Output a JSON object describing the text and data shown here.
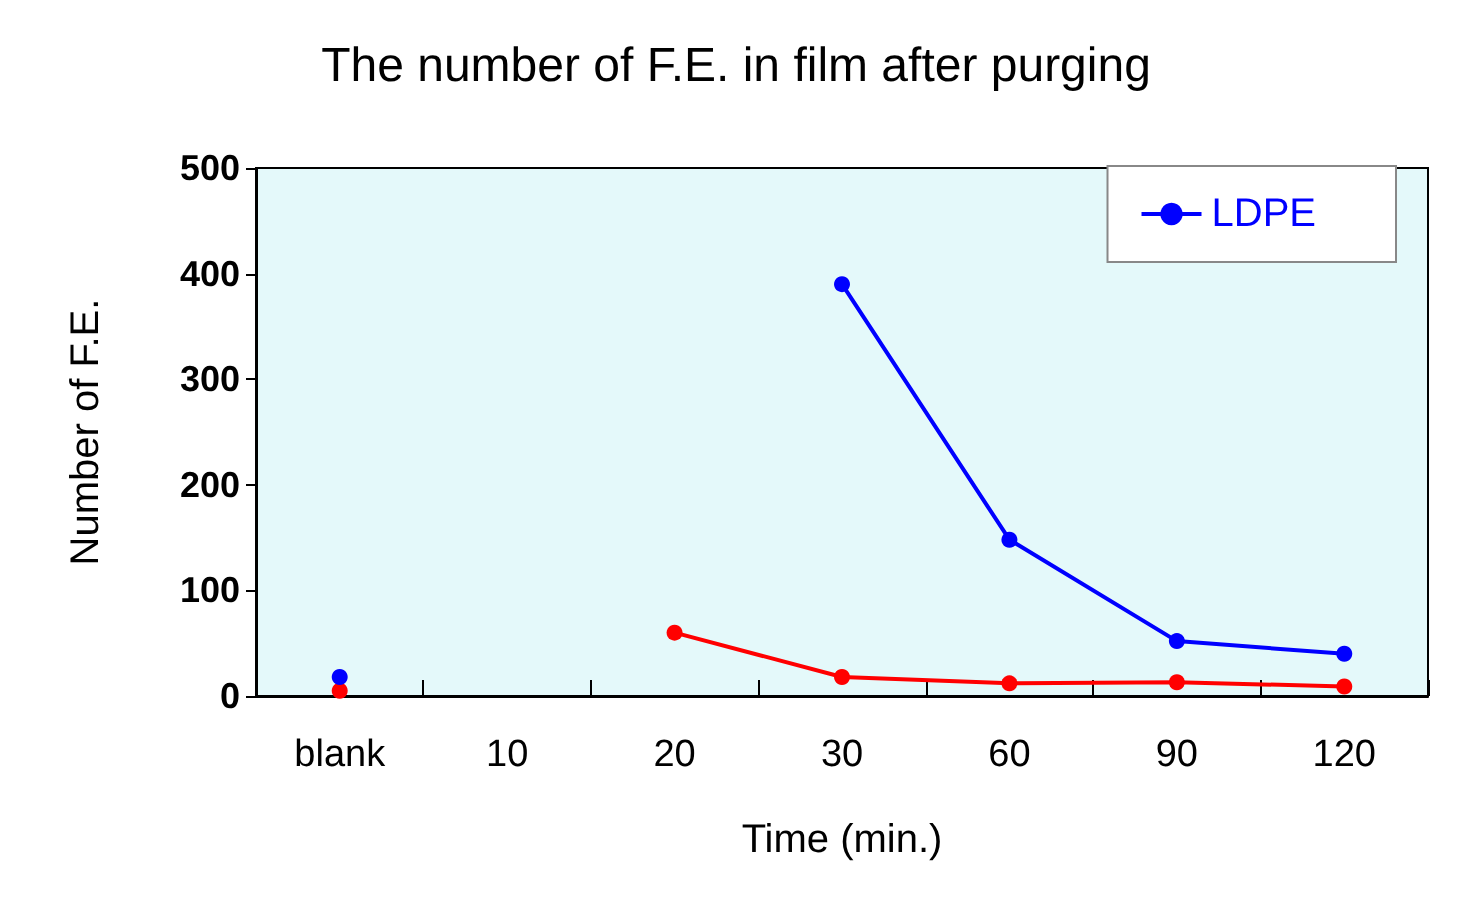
{
  "chart_data": {
    "type": "line",
    "title": "The number of F.E. in film after purging",
    "xlabel": "Time (min.)",
    "ylabel": "Number of F.E.",
    "categories": [
      "blank",
      "10",
      "20",
      "30",
      "60",
      "90",
      "120"
    ],
    "series": [
      {
        "color": "#ff0000",
        "values": [
          5,
          null,
          60,
          18,
          12,
          13,
          9
        ]
      },
      {
        "name": "LDPE",
        "color": "#0000ff",
        "values": [
          18,
          null,
          null,
          390,
          148,
          52,
          40
        ]
      }
    ],
    "ylim": [
      0,
      500
    ],
    "yticks": [
      0,
      100,
      200,
      300,
      400,
      500
    ],
    "grid": false,
    "legend": "top right",
    "marker": "circle",
    "line_style": "solid"
  }
}
